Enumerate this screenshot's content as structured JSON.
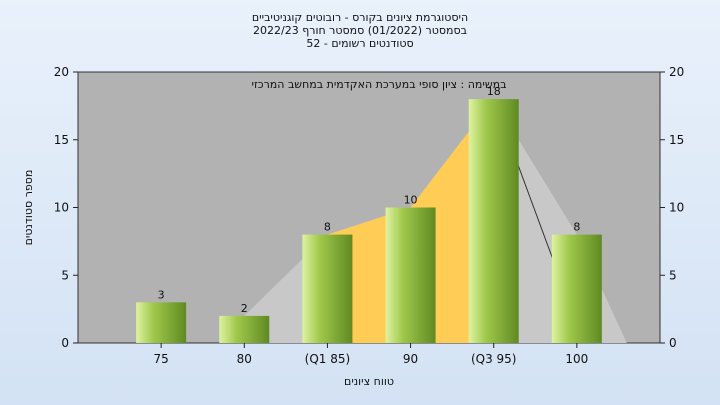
{
  "chart_data": {
    "type": "bar",
    "title_lines": [
      "היסטוגרמת ציונים בקורס - רובוטים קוגניטיביים",
      "בסמסטר  (01/2022)  סמסטר חורף 2022/23",
      "סטודנטים רשומים - 52"
    ],
    "xlabel": "טווח ציונים",
    "ylabel": "מספר סטודנטים",
    "categories": [
      "75",
      "80",
      "(Q1 85)",
      "90",
      "(Q3 95)",
      "100"
    ],
    "values": [
      3,
      2,
      8,
      10,
      18,
      8
    ],
    "data_labels": [
      "3",
      "2",
      "8",
      "10",
      "18",
      "8"
    ],
    "ylim": [
      0,
      20
    ],
    "yticks": [
      "0",
      "5",
      "10",
      "15",
      "20"
    ],
    "annotation": "במשימה : ציון סופי במערכת האקדמית במחשב המרכזי",
    "grid": false,
    "secondary_y_axis": true,
    "colors": {
      "plot_bg": "#b2b2b2",
      "bar_light": "#dff2a2",
      "bar_mid": "#9fc84a",
      "bar_dark": "#5f8a22",
      "highlight_area": "#ffcc55",
      "background_area": "#c8c8c8"
    }
  }
}
